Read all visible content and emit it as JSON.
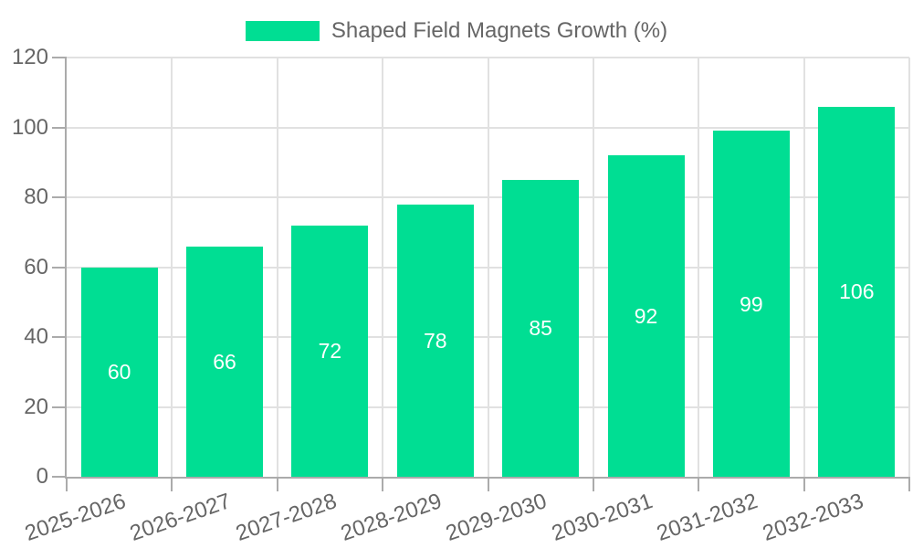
{
  "chart_data": {
    "type": "bar",
    "title": "Shaped Field Magnets Growth (%)",
    "legend_position": "top",
    "categories": [
      "2025-2026",
      "2026-2027",
      "2027-2028",
      "2028-2029",
      "2029-2030",
      "2030-2031",
      "2031-2032",
      "2032-2033"
    ],
    "series": [
      {
        "name": "Shaped Field Magnets Growth (%)",
        "values": [
          60,
          66,
          72,
          78,
          85,
          92,
          99,
          106
        ]
      }
    ],
    "value_labels_shown": true,
    "xlabel": "",
    "ylabel": "",
    "ylim": [
      0,
      120
    ],
    "yticks": [
      0,
      20,
      40,
      60,
      80,
      100,
      120
    ],
    "grid": true,
    "colors": {
      "bar": "#00DE93",
      "value_label": "#FFFFFF",
      "axis_text": "#666666",
      "grid_line": "#E1E1E1",
      "axis_line": "#ABABAB",
      "background": "#FFFFFF"
    }
  }
}
